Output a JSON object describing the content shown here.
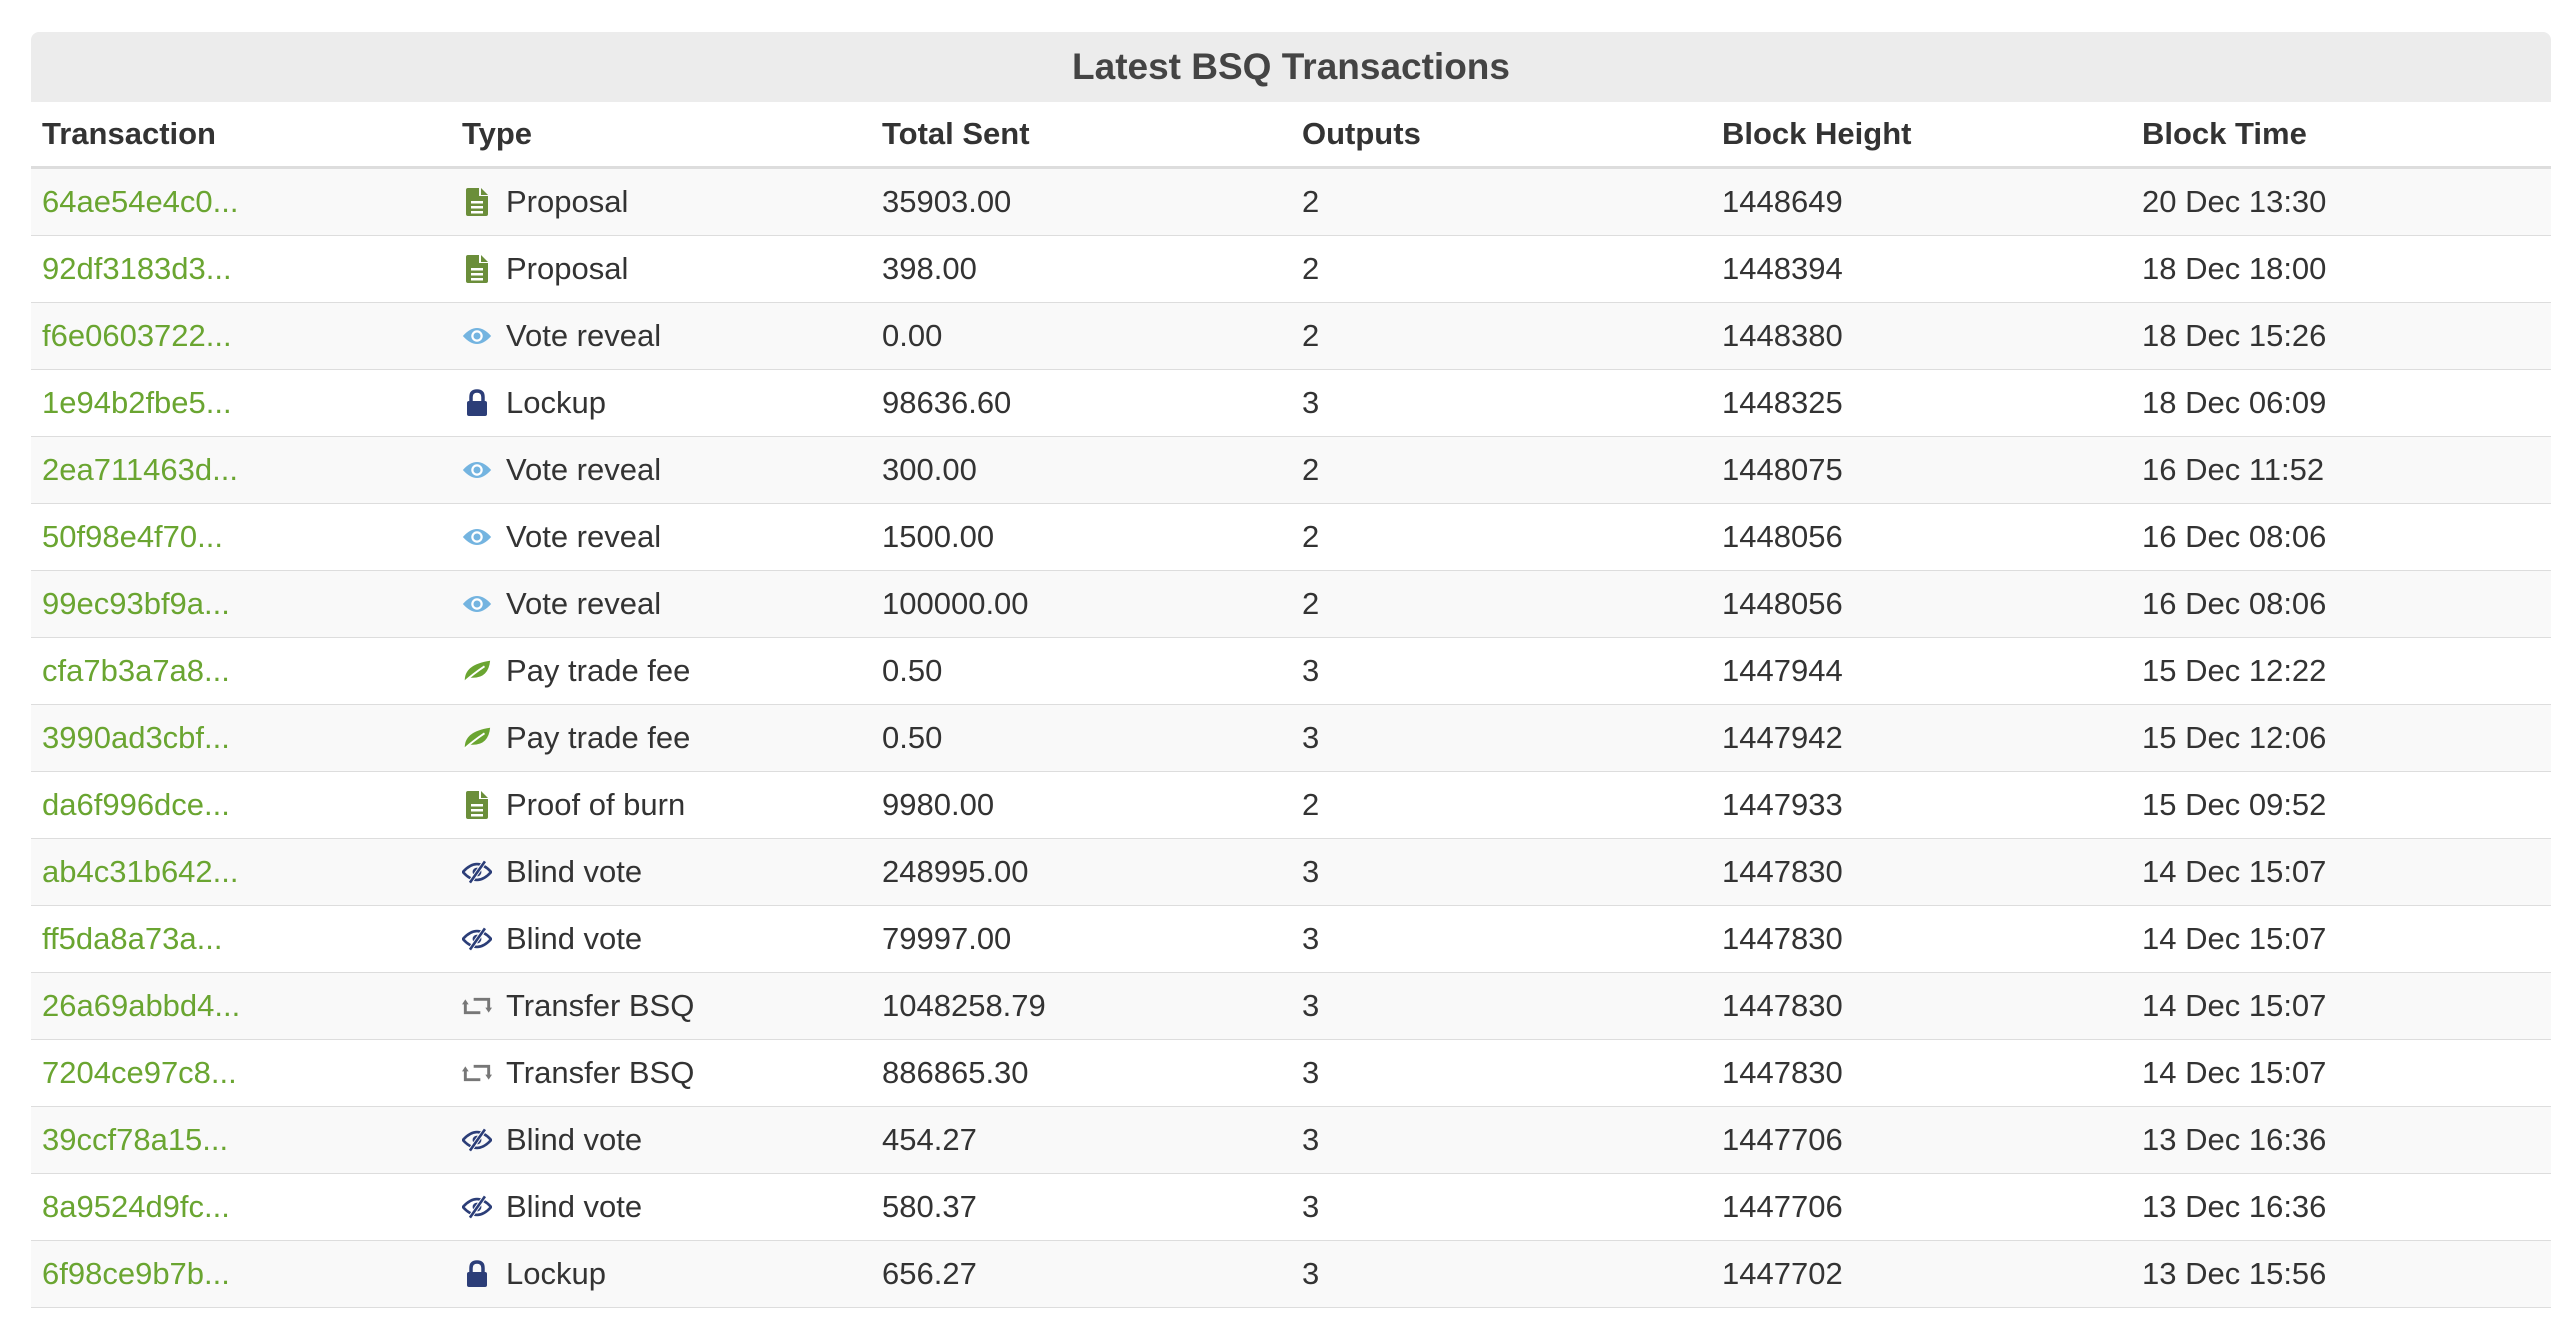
{
  "title": "Latest BSQ Transactions",
  "columns": [
    "Transaction",
    "Type",
    "Total Sent",
    "Outputs",
    "Block Height",
    "Block Time"
  ],
  "colors": {
    "link": "#6aa531",
    "proposal_icon": "#6b8e3a",
    "vote_reveal_icon": "#74b4e0",
    "lockup_icon": "#2c3e78",
    "fee_icon": "#6aa531",
    "blind_vote_icon": "#2c3e78",
    "transfer_icon": "#777777"
  },
  "rows": [
    {
      "tx": "64ae54e4c0...",
      "type": "Proposal",
      "icon": "file-icon",
      "total": "35903.00",
      "outputs": "2",
      "height": "1448649",
      "time": "20 Dec 13:30"
    },
    {
      "tx": "92df3183d3...",
      "type": "Proposal",
      "icon": "file-icon",
      "total": "398.00",
      "outputs": "2",
      "height": "1448394",
      "time": "18 Dec 18:00"
    },
    {
      "tx": "f6e0603722...",
      "type": "Vote reveal",
      "icon": "eye-icon",
      "total": "0.00",
      "outputs": "2",
      "height": "1448380",
      "time": "18 Dec 15:26"
    },
    {
      "tx": "1e94b2fbe5...",
      "type": "Lockup",
      "icon": "lock-icon",
      "total": "98636.60",
      "outputs": "3",
      "height": "1448325",
      "time": "18 Dec 06:09"
    },
    {
      "tx": "2ea711463d...",
      "type": "Vote reveal",
      "icon": "eye-icon",
      "total": "300.00",
      "outputs": "2",
      "height": "1448075",
      "time": "16 Dec 11:52"
    },
    {
      "tx": "50f98e4f70...",
      "type": "Vote reveal",
      "icon": "eye-icon",
      "total": "1500.00",
      "outputs": "2",
      "height": "1448056",
      "time": "16 Dec 08:06"
    },
    {
      "tx": "99ec93bf9a...",
      "type": "Vote reveal",
      "icon": "eye-icon",
      "total": "100000.00",
      "outputs": "2",
      "height": "1448056",
      "time": "16 Dec 08:06"
    },
    {
      "tx": "cfa7b3a7a8...",
      "type": "Pay trade fee",
      "icon": "leaf-icon",
      "total": "0.50",
      "outputs": "3",
      "height": "1447944",
      "time": "15 Dec 12:22"
    },
    {
      "tx": "3990ad3cbf...",
      "type": "Pay trade fee",
      "icon": "leaf-icon",
      "total": "0.50",
      "outputs": "3",
      "height": "1447942",
      "time": "15 Dec 12:06"
    },
    {
      "tx": "da6f996dce...",
      "type": "Proof of burn",
      "icon": "file-icon",
      "total": "9980.00",
      "outputs": "2",
      "height": "1447933",
      "time": "15 Dec 09:52"
    },
    {
      "tx": "ab4c31b642...",
      "type": "Blind vote",
      "icon": "eye-slash-icon",
      "total": "248995.00",
      "outputs": "3",
      "height": "1447830",
      "time": "14 Dec 15:07"
    },
    {
      "tx": "ff5da8a73a...",
      "type": "Blind vote",
      "icon": "eye-slash-icon",
      "total": "79997.00",
      "outputs": "3",
      "height": "1447830",
      "time": "14 Dec 15:07"
    },
    {
      "tx": "26a69abbd4...",
      "type": "Transfer BSQ",
      "icon": "retweet-icon",
      "total": "1048258.79",
      "outputs": "3",
      "height": "1447830",
      "time": "14 Dec 15:07"
    },
    {
      "tx": "7204ce97c8...",
      "type": "Transfer BSQ",
      "icon": "retweet-icon",
      "total": "886865.30",
      "outputs": "3",
      "height": "1447830",
      "time": "14 Dec 15:07"
    },
    {
      "tx": "39ccf78a15...",
      "type": "Blind vote",
      "icon": "eye-slash-icon",
      "total": "454.27",
      "outputs": "3",
      "height": "1447706",
      "time": "13 Dec 16:36"
    },
    {
      "tx": "8a9524d9fc...",
      "type": "Blind vote",
      "icon": "eye-slash-icon",
      "total": "580.37",
      "outputs": "3",
      "height": "1447706",
      "time": "13 Dec 16:36"
    },
    {
      "tx": "6f98ce9b7b...",
      "type": "Lockup",
      "icon": "lock-icon",
      "total": "656.27",
      "outputs": "3",
      "height": "1447702",
      "time": "13 Dec 15:56"
    }
  ]
}
